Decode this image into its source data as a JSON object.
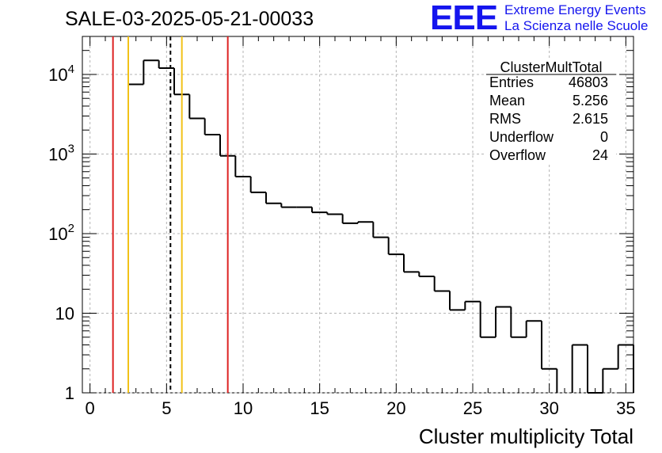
{
  "header": {
    "run_title": "SALE-03-2025-05-21-00033",
    "logo_text": "EEE",
    "logo_line1": "Extreme Energy Events",
    "logo_line2": "La Scienza nelle Scuole",
    "logo_color": "#1515ee"
  },
  "stats_box": {
    "title": "ClusterMultTotal",
    "rows": [
      {
        "label": "Entries",
        "value": "46803"
      },
      {
        "label": "Mean",
        "value": "5.256"
      },
      {
        "label": "RMS",
        "value": "2.615"
      },
      {
        "label": "Underflow",
        "value": "0"
      },
      {
        "label": "Overflow",
        "value": "24"
      }
    ]
  },
  "chart_data": {
    "type": "histogram",
    "title": "SALE-03-2025-05-21-00033",
    "xlabel": "Cluster multiplicity Total",
    "ylabel": "",
    "xlim": [
      -0.5,
      35.5
    ],
    "ylim": [
      1,
      30000
    ],
    "yscale": "log",
    "grid": true,
    "bin_width": 1,
    "bin_centers": [
      0,
      1,
      2,
      3,
      4,
      5,
      6,
      7,
      8,
      9,
      10,
      11,
      12,
      13,
      14,
      15,
      16,
      17,
      18,
      19,
      20,
      21,
      22,
      23,
      24,
      25,
      26,
      27,
      28,
      29,
      30,
      31,
      32,
      33,
      34,
      35
    ],
    "counts": [
      0,
      0,
      0,
      7500,
      15000,
      12000,
      5600,
      2800,
      1750,
      950,
      520,
      330,
      240,
      215,
      215,
      185,
      175,
      135,
      140,
      90,
      55,
      33,
      29,
      19,
      11,
      14,
      5,
      12,
      5,
      8,
      2,
      0,
      4,
      1,
      2,
      4
    ],
    "x_ticks": [
      0,
      5,
      10,
      15,
      20,
      25,
      30,
      35
    ],
    "x_tick_labels": [
      "0",
      "5",
      "10",
      "15",
      "20",
      "25",
      "30",
      "35"
    ],
    "y_ticks": [
      1,
      10,
      100,
      1000,
      10000
    ],
    "y_tick_labels": [
      {
        "base": "1",
        "exp": ""
      },
      {
        "base": "10",
        "exp": ""
      },
      {
        "base": "10",
        "exp": "2"
      },
      {
        "base": "10",
        "exp": "3"
      },
      {
        "base": "10",
        "exp": "4"
      }
    ],
    "vertical_lines": [
      {
        "x": 1.5,
        "color": "#dd2222",
        "style": "solid"
      },
      {
        "x": 2.5,
        "color": "#f2c218",
        "style": "solid"
      },
      {
        "x": 5.256,
        "color": "#000000",
        "style": "dashed"
      },
      {
        "x": 6.0,
        "color": "#f2c218",
        "style": "solid"
      },
      {
        "x": 9.0,
        "color": "#dd2222",
        "style": "solid"
      }
    ]
  }
}
